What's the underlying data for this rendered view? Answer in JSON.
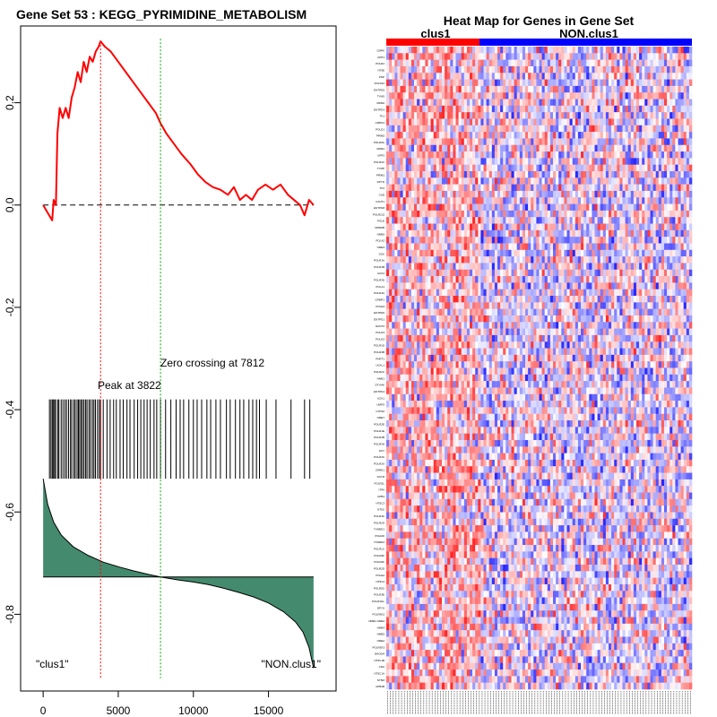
{
  "chart_data": [
    {
      "type": "line",
      "title": "Gene Set  53 : KEGG_PYRIMIDINE_METABOLISM",
      "xlabel": "",
      "ylabel": "",
      "xlim": [
        -1500,
        19500
      ],
      "ylim": [
        -0.95,
        0.35
      ],
      "x_ticks": [
        0,
        5000,
        10000,
        15000
      ],
      "y_ticks": [
        0.2,
        0.0,
        -0.2,
        -0.4,
        -0.6,
        -0.8
      ],
      "y_tick_labels": [
        "0.2",
        "0.0",
        "-0.2",
        "-0.4",
        "-0.6",
        "-0.8"
      ],
      "x_tick_labels": [
        "0",
        "5000",
        "10000",
        "15000"
      ],
      "running_es": {
        "name": "Running enrichment score",
        "color": "#ff0000",
        "x": [
          0,
          300,
          600,
          700,
          850,
          950,
          1100,
          1300,
          1500,
          1700,
          1900,
          2100,
          2300,
          2500,
          2700,
          2900,
          3100,
          3300,
          3500,
          3700,
          3822,
          4100,
          4500,
          5000,
          5500,
          6000,
          6500,
          7000,
          7500,
          7812,
          8200,
          8700,
          9200,
          9800,
          10300,
          10800,
          11300,
          11800,
          12300,
          12700,
          13100,
          13500,
          13900,
          14300,
          14800,
          15300,
          15800,
          16300,
          16700,
          17100,
          17400,
          17700,
          18000
        ],
        "y": [
          0.0,
          -0.015,
          -0.03,
          0.01,
          0.0,
          0.14,
          0.19,
          0.17,
          0.19,
          0.17,
          0.21,
          0.23,
          0.26,
          0.24,
          0.28,
          0.26,
          0.29,
          0.28,
          0.3,
          0.31,
          0.32,
          0.31,
          0.3,
          0.28,
          0.26,
          0.24,
          0.22,
          0.2,
          0.18,
          0.16,
          0.14,
          0.12,
          0.1,
          0.08,
          0.06,
          0.045,
          0.035,
          0.03,
          0.02,
          0.035,
          0.01,
          0.02,
          0.01,
          0.03,
          0.04,
          0.03,
          0.04,
          0.02,
          0.01,
          0.0,
          -0.02,
          0.01,
          0.0
        ]
      },
      "zero_line": {
        "y": 0.0,
        "style": "dashed",
        "color": "#000000"
      },
      "peak": {
        "x": 3822,
        "label": "Peak at 3822",
        "color": "#ff0000"
      },
      "zero_crossing": {
        "x": 7812,
        "label": "Zero crossing at 7812",
        "color": "#00aa00"
      },
      "hit_positions": [
        420,
        520,
        610,
        690,
        760,
        840,
        980,
        1050,
        1200,
        1320,
        1450,
        1560,
        1690,
        1820,
        1910,
        2050,
        2140,
        2260,
        2350,
        2430,
        2530,
        2620,
        2720,
        2830,
        2920,
        3050,
        3150,
        3280,
        3380,
        3480,
        3620,
        3740,
        3822,
        4000,
        4250,
        4460,
        4690,
        4870,
        5120,
        5330,
        5580,
        5780,
        6060,
        6290,
        6500,
        6720,
        6920,
        7130,
        7380,
        7560,
        7812,
        8150,
        8500,
        8850,
        9120,
        9350,
        9700,
        10000,
        10250,
        10550,
        10900,
        11150,
        11500,
        11800,
        12200,
        12450,
        12800,
        13100,
        13350,
        13700,
        13950,
        14200,
        14400,
        14850,
        15500,
        16500,
        17400,
        17750
      ],
      "hit_band": {
        "y_top": -0.38,
        "y_bottom": -0.535
      },
      "ranked_metric": {
        "name": "Ranked list metric",
        "fill_color": "#448a6e",
        "baseline": -0.727,
        "x": [
          0,
          300,
          700,
          1200,
          2000,
          3000,
          4000,
          5000,
          6000,
          7000,
          7812,
          9000,
          10000,
          11000,
          12000,
          13000,
          14000,
          15000,
          16000,
          16800,
          17300,
          17700,
          18000
        ],
        "y": [
          -0.535,
          -0.585,
          -0.62,
          -0.645,
          -0.668,
          -0.685,
          -0.698,
          -0.707,
          -0.715,
          -0.722,
          -0.727,
          -0.733,
          -0.737,
          -0.742,
          -0.749,
          -0.757,
          -0.766,
          -0.778,
          -0.795,
          -0.815,
          -0.835,
          -0.865,
          -0.905
        ]
      },
      "group_labels": [
        "\"clus1\"",
        "\"NON.clus1\""
      ]
    },
    {
      "type": "heatmap",
      "title": "Heat Map for Genes in Gene Set",
      "groups": [
        {
          "label": "clus1",
          "color": "#ff0000",
          "fraction": 0.305
        },
        {
          "label": "NON.clus1",
          "color": "#0000ff",
          "fraction": 0.695
        }
      ],
      "color_scale": [
        "#0000ff",
        "#ffffff",
        "#ff0000"
      ],
      "genes": [
        "CMPK",
        "UPP1",
        "POLR2",
        "NT5E",
        "PNP",
        "POLR2J",
        "ENTPD5",
        "TYMS",
        "RRM2",
        "ENTPD3",
        "TK1",
        "CMPK2",
        "POLD1",
        "PRIM2",
        "POLR3G",
        "RRM1",
        "UPP2",
        "POLR3C",
        "TYMP",
        "PRIM1",
        "DPYD",
        "TK2",
        "CAD",
        "CANT1",
        "ENTPD8",
        "POLR2J2",
        "POLE",
        "RRM2B",
        "NME6",
        "POLA2",
        "NME3",
        "DCK",
        "POLR1A",
        "POLR1B",
        "UCK2",
        "POLR3D",
        "POLA1",
        "POLR3A",
        "CRMP1",
        "POLE3",
        "ENTPD6",
        "ENTPD1",
        "NUDT2",
        "POLD3",
        "POLD2",
        "POLR1D",
        "POLR3B",
        "PNPT1",
        "UCKL1",
        "POLR2C",
        "NME1",
        "DTYMK",
        "ENTPD4",
        "UCK1",
        "UMPS",
        "CTPS2",
        "NME7",
        "POLR2E",
        "POLR1E",
        "POLR2B",
        "POLR3H",
        "DUT",
        "POLR2K",
        "POLR2A",
        "ZNRD1",
        "DCTD",
        "POLR2L",
        "ITPA",
        "UPB1",
        "NT5C3",
        "NT5C",
        "POLR3K",
        "POLR2H",
        "TXNRD1",
        "POLR2I",
        "TXNRD2",
        "POLR1C",
        "POLR3F",
        "POLR2F",
        "POLR2D",
        "POLE2",
        "NT5C2",
        "POLR2G",
        "POLR3E",
        "POLR3GL",
        "DPYS",
        "POLR3K2",
        "NME1-NME2",
        "NME4",
        "NME5",
        "NME2",
        "POLR3K3",
        "DHODH",
        "NT5C1B",
        "CDA",
        "NT5C1A",
        "NT5M",
        "UPB1B"
      ],
      "sample_count": 110,
      "seed": 53
    }
  ]
}
